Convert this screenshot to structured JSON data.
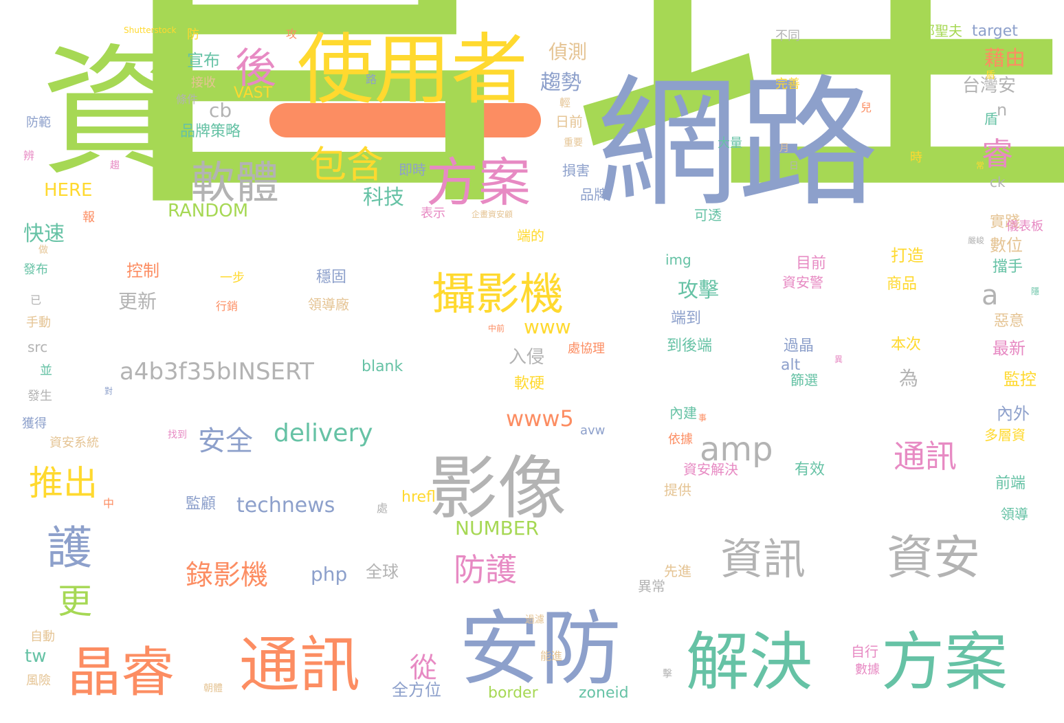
{
  "palette": {
    "green": "#a6d854",
    "blue": "#8da0cb",
    "orange": "#fc8d62",
    "yellow": "#ffd92f",
    "gray": "#b3b3b3",
    "teal": "#66c2a5",
    "pink": "#e78ac3",
    "tan": "#e5c494"
  },
  "words": [
    {
      "text": "管理",
      "color": "green"
    },
    {
      "text": "網路",
      "color": "blue"
    },
    {
      "text": "資",
      "color": "green"
    },
    {
      "text": "一",
      "color": "orange"
    },
    {
      "text": "使用者",
      "color": "yellow"
    },
    {
      "text": "安防",
      "color": "blue"
    },
    {
      "text": "影像",
      "color": "gray"
    },
    {
      "text": "解決",
      "color": "teal"
    },
    {
      "text": "方案",
      "color": "teal"
    },
    {
      "text": "通訊",
      "color": "orange"
    },
    {
      "text": "晶睿",
      "color": "orange"
    },
    {
      "text": "方案",
      "color": "pink"
    },
    {
      "text": "攝影機",
      "color": "yellow"
    },
    {
      "text": "資安",
      "color": "gray"
    },
    {
      "text": "資訊",
      "color": "gray"
    },
    {
      "text": "軟體",
      "color": "gray"
    },
    {
      "text": "包含",
      "color": "yellow"
    },
    {
      "text": "amp",
      "color": "gray"
    },
    {
      "text": "護",
      "color": "blue"
    },
    {
      "text": "後",
      "color": "pink"
    },
    {
      "text": "推出",
      "color": "yellow"
    },
    {
      "text": "更",
      "color": "green"
    },
    {
      "text": "通訊",
      "color": "pink"
    },
    {
      "text": "防護",
      "color": "pink"
    },
    {
      "text": "睿",
      "color": "pink"
    },
    {
      "text": "安全",
      "color": "blue"
    },
    {
      "text": "delivery",
      "color": "teal"
    },
    {
      "text": "錄影機",
      "color": "orange"
    },
    {
      "text": "a4b3f35bINSERT",
      "color": "gray"
    },
    {
      "text": "www5",
      "color": "orange"
    },
    {
      "text": "technews",
      "color": "blue"
    },
    {
      "text": "RANDOM",
      "color": "green"
    },
    {
      "text": "NUMBER",
      "color": "green"
    },
    {
      "text": "攻擊",
      "color": "teal"
    },
    {
      "text": "趨勢",
      "color": "blue"
    },
    {
      "text": "偵測",
      "color": "tan"
    },
    {
      "text": "從",
      "color": "pink"
    },
    {
      "text": "台灣安",
      "color": "gray"
    },
    {
      "text": "藉由",
      "color": "orange"
    },
    {
      "text": "php",
      "color": "blue"
    },
    {
      "text": "科技",
      "color": "teal"
    },
    {
      "text": "www",
      "color": "yellow"
    },
    {
      "text": "a",
      "color": "gray"
    },
    {
      "text": "快速",
      "color": "teal"
    },
    {
      "text": "HERE",
      "color": "yellow"
    },
    {
      "text": "cb",
      "color": "gray"
    },
    {
      "text": "tw",
      "color": "teal"
    },
    {
      "text": "border",
      "color": "green"
    },
    {
      "text": "zoneid",
      "color": "teal"
    },
    {
      "text": "target",
      "color": "blue"
    },
    {
      "text": "更新",
      "color": "gray"
    },
    {
      "text": "入侵",
      "color": "gray"
    },
    {
      "text": "品牌策略",
      "color": "teal"
    },
    {
      "text": "宣布",
      "color": "teal"
    },
    {
      "text": "全球",
      "color": "gray"
    },
    {
      "text": "blank",
      "color": "teal"
    },
    {
      "text": "全方位",
      "color": "blue"
    },
    {
      "text": "n",
      "color": "gray"
    },
    {
      "text": "VAST",
      "color": "yellow"
    },
    {
      "text": "鄭聖夫",
      "color": "green"
    },
    {
      "text": "盾",
      "color": "teal"
    },
    {
      "text": "ck",
      "color": "gray"
    },
    {
      "text": "目前",
      "color": "pink"
    },
    {
      "text": "資安警",
      "color": "pink"
    },
    {
      "text": "打造",
      "color": "yellow"
    },
    {
      "text": "商品",
      "color": "yellow"
    },
    {
      "text": "過晶",
      "color": "blue"
    },
    {
      "text": "篩選",
      "color": "teal"
    },
    {
      "text": "本次",
      "color": "yellow"
    },
    {
      "text": "為",
      "color": "gray"
    },
    {
      "text": "alt",
      "color": "blue"
    },
    {
      "text": "hrefl",
      "color": "yellow"
    },
    {
      "text": "img",
      "color": "teal"
    },
    {
      "text": "監控",
      "color": "yellow"
    },
    {
      "text": "最新",
      "color": "pink"
    },
    {
      "text": "內外",
      "color": "blue"
    },
    {
      "text": "多層資",
      "color": "yellow"
    },
    {
      "text": "前端",
      "color": "teal"
    },
    {
      "text": "領導",
      "color": "teal"
    },
    {
      "text": "數位",
      "color": "tan"
    },
    {
      "text": "擋手",
      "color": "teal"
    },
    {
      "text": "惡意",
      "color": "tan"
    },
    {
      "text": "實踐",
      "color": "tan"
    },
    {
      "text": "儀表板",
      "color": "pink"
    },
    {
      "text": "src",
      "color": "gray"
    },
    {
      "text": "avw",
      "color": "blue"
    },
    {
      "text": "監顧",
      "color": "blue"
    },
    {
      "text": "穩固",
      "color": "blue"
    },
    {
      "text": "控制",
      "color": "orange"
    },
    {
      "text": "領導廠",
      "color": "tan"
    },
    {
      "text": "到後端",
      "color": "teal"
    },
    {
      "text": "端到",
      "color": "blue"
    },
    {
      "text": "軟硬",
      "color": "yellow"
    },
    {
      "text": "有效",
      "color": "teal"
    },
    {
      "text": "資安解決",
      "color": "pink"
    },
    {
      "text": "依據",
      "color": "orange"
    },
    {
      "text": "內建",
      "color": "teal"
    },
    {
      "text": "提供",
      "color": "tan"
    },
    {
      "text": "先進",
      "color": "tan"
    },
    {
      "text": "異常",
      "color": "gray"
    },
    {
      "text": "自行",
      "color": "pink"
    },
    {
      "text": "數據",
      "color": "pink"
    },
    {
      "text": "能進",
      "color": "tan"
    },
    {
      "text": "過濾",
      "color": "tan"
    },
    {
      "text": "日前",
      "color": "tan"
    },
    {
      "text": "損害",
      "color": "blue"
    },
    {
      "text": "品牌",
      "color": "blue"
    },
    {
      "text": "可透",
      "color": "teal"
    },
    {
      "text": "表示",
      "color": "pink"
    },
    {
      "text": "即時",
      "color": "blue"
    },
    {
      "text": "端的",
      "color": "yellow"
    },
    {
      "text": "處協理",
      "color": "orange"
    },
    {
      "text": "大量",
      "color": "teal"
    },
    {
      "text": "不同",
      "color": "gray"
    },
    {
      "text": "完善",
      "color": "yellow"
    },
    {
      "text": "月",
      "color": "tan"
    },
    {
      "text": "日",
      "color": "gray"
    },
    {
      "text": "時",
      "color": "yellow"
    },
    {
      "text": "兒",
      "color": "orange"
    },
    {
      "text": "接收",
      "color": "tan"
    },
    {
      "text": "條件",
      "color": "gray"
    },
    {
      "text": "防",
      "color": "yellow"
    },
    {
      "text": "攻",
      "color": "orange"
    },
    {
      "text": "報",
      "color": "orange"
    },
    {
      "text": "發布",
      "color": "teal"
    },
    {
      "text": "做",
      "color": "tan"
    },
    {
      "text": "防範",
      "color": "blue"
    },
    {
      "text": "辨",
      "color": "pink"
    },
    {
      "text": "手動",
      "color": "tan"
    },
    {
      "text": "並",
      "color": "teal"
    },
    {
      "text": "發生",
      "color": "gray"
    },
    {
      "text": "獲得",
      "color": "blue"
    },
    {
      "text": "資安系統",
      "color": "tan"
    },
    {
      "text": "自動",
      "color": "tan"
    },
    {
      "text": "風險",
      "color": "tan"
    },
    {
      "text": "一步",
      "color": "yellow"
    },
    {
      "text": "行銷",
      "color": "orange"
    },
    {
      "text": "已",
      "color": "gray"
    },
    {
      "text": "中",
      "color": "orange"
    },
    {
      "text": "處",
      "color": "gray"
    },
    {
      "text": "找到",
      "color": "pink"
    },
    {
      "text": "對",
      "color": "blue"
    },
    {
      "text": "Shutterstock",
      "color": "yellow"
    },
    {
      "text": "路",
      "color": "blue"
    },
    {
      "text": "輕",
      "color": "tan"
    },
    {
      "text": "重要",
      "color": "tan"
    },
    {
      "text": "嚴峻",
      "color": "gray"
    },
    {
      "text": "企畫資安顧",
      "color": "tan"
    },
    {
      "text": "常",
      "color": "yellow"
    },
    {
      "text": "事",
      "color": "orange"
    },
    {
      "text": "隱",
      "color": "teal"
    },
    {
      "text": "擊",
      "color": "gray"
    },
    {
      "text": "朝體",
      "color": "tan"
    },
    {
      "text": "趨",
      "color": "pink"
    },
    {
      "text": "盾",
      "color": "yellow"
    },
    {
      "text": "異",
      "color": "pink"
    },
    {
      "text": "中前",
      "color": "orange"
    }
  ]
}
